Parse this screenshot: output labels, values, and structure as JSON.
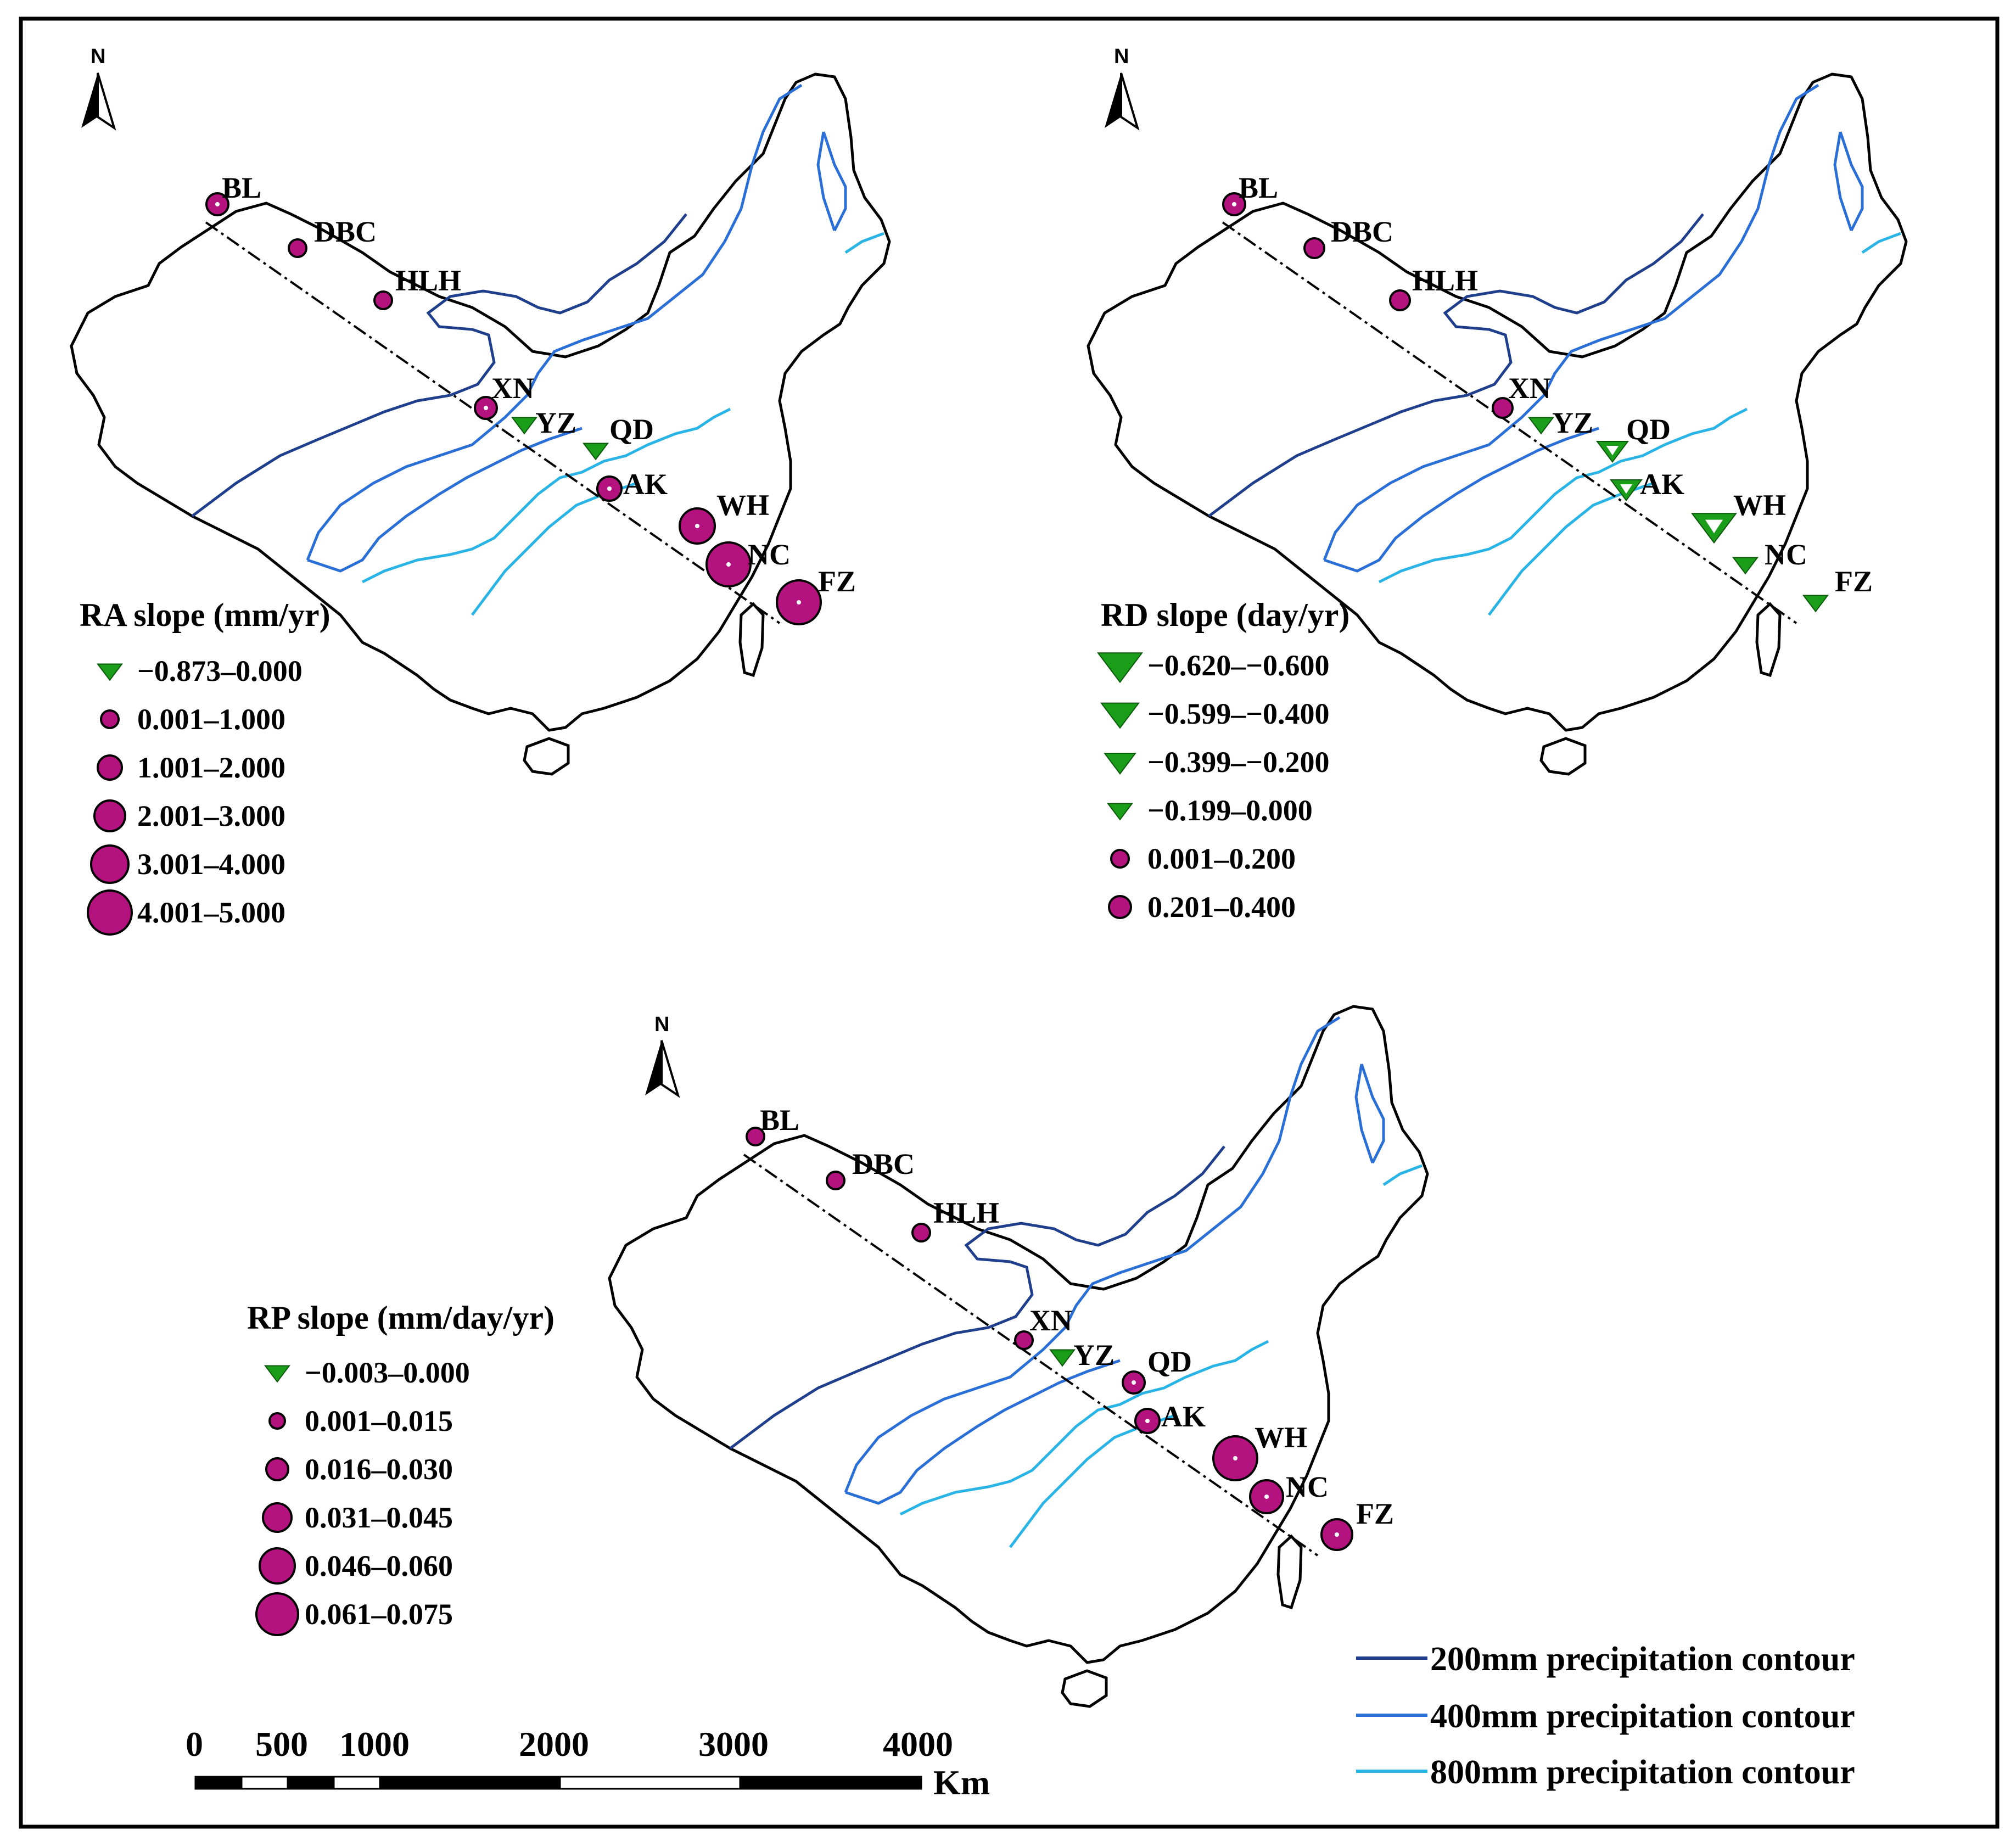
{
  "north_label": "N",
  "maps": [
    {
      "id": "ra",
      "title": "RA slope (mm/yr)",
      "legend": [
        {
          "label": "−0.873–0.000",
          "shape": "tri",
          "s": 22
        },
        {
          "label": "0.001–1.000",
          "shape": "dot",
          "s": 16
        },
        {
          "label": "1.001–2.000",
          "shape": "dot",
          "s": 22
        },
        {
          "label": "2.001–3.000",
          "shape": "dot",
          "s": 28
        },
        {
          "label": "3.001–4.000",
          "shape": "dot",
          "s": 34
        },
        {
          "label": "4.001–5.000",
          "shape": "dot",
          "s": 40
        }
      ],
      "stations": {
        "BL": {
          "shape": "dot",
          "s": 20
        },
        "DBC": {
          "shape": "dot",
          "s": 16
        },
        "HLH": {
          "shape": "dot",
          "s": 16
        },
        "XN": {
          "shape": "dot",
          "s": 20
        },
        "YZ": {
          "shape": "tri",
          "s": 22
        },
        "QD": {
          "shape": "tri",
          "s": 22
        },
        "AK": {
          "shape": "dot",
          "s": 22
        },
        "WH": {
          "shape": "dot",
          "s": 32
        },
        "NC": {
          "shape": "dot",
          "s": 40
        },
        "FZ": {
          "shape": "dot",
          "s": 40
        }
      }
    },
    {
      "id": "rd",
      "title": "RD slope (day/yr)",
      "legend": [
        {
          "label": "−0.620–−0.600",
          "shape": "tri",
          "s": 40
        },
        {
          "label": "−0.599–−0.400",
          "shape": "tri",
          "s": 34
        },
        {
          "label": "−0.399–−0.200",
          "shape": "tri",
          "s": 28
        },
        {
          "label": "−0.199–0.000",
          "shape": "tri",
          "s": 22
        },
        {
          "label": "0.001–0.200",
          "shape": "dot",
          "s": 16
        },
        {
          "label": "0.201–0.400",
          "shape": "dot",
          "s": 20
        }
      ],
      "stations": {
        "BL": {
          "shape": "dot",
          "s": 20
        },
        "DBC": {
          "shape": "dot",
          "s": 18
        },
        "HLH": {
          "shape": "dot",
          "s": 18
        },
        "XN": {
          "shape": "dot",
          "s": 18
        },
        "YZ": {
          "shape": "tri",
          "s": 22
        },
        "QD": {
          "shape": "tri",
          "s": 28
        },
        "AK": {
          "shape": "tri",
          "s": 28
        },
        "WH": {
          "shape": "tri",
          "s": 40
        },
        "NC": {
          "shape": "tri",
          "s": 22
        },
        "FZ": {
          "shape": "tri",
          "s": 22
        }
      }
    },
    {
      "id": "rp",
      "title": "RP slope (mm/day/yr)",
      "legend": [
        {
          "label": "−0.003–0.000",
          "shape": "tri",
          "s": 22
        },
        {
          "label": "0.001–0.015",
          "shape": "dot",
          "s": 14
        },
        {
          "label": "0.016–0.030",
          "shape": "dot",
          "s": 20
        },
        {
          "label": "0.031–0.045",
          "shape": "dot",
          "s": 26
        },
        {
          "label": "0.046–0.060",
          "shape": "dot",
          "s": 32
        },
        {
          "label": "0.061–0.075",
          "shape": "dot",
          "s": 38
        }
      ],
      "stations": {
        "BL": {
          "shape": "dot",
          "s": 16
        },
        "DBC": {
          "shape": "dot",
          "s": 16
        },
        "HLH": {
          "shape": "dot",
          "s": 16
        },
        "XN": {
          "shape": "dot",
          "s": 16
        },
        "YZ": {
          "shape": "tri",
          "s": 22
        },
        "QD": {
          "shape": "dot",
          "s": 20
        },
        "AK": {
          "shape": "dot",
          "s": 22
        },
        "WH": {
          "shape": "dot",
          "s": 40
        },
        "NC": {
          "shape": "dot",
          "s": 30
        },
        "FZ": {
          "shape": "dot",
          "s": 28
        }
      }
    }
  ],
  "station_names": [
    "BL",
    "DBC",
    "HLH",
    "XN",
    "YZ",
    "QD",
    "AK",
    "WH",
    "NC",
    "FZ"
  ],
  "contours": [
    {
      "label": "200mm precipitation contour",
      "color": "#1f3f8c"
    },
    {
      "label": "400mm precipitation contour",
      "color": "#2a6fd6"
    },
    {
      "label": "800mm precipitation contour",
      "color": "#2ab4e6"
    }
  ],
  "colors": {
    "positive": "#b4127e",
    "negative": "#1a9e1a"
  },
  "scale_bar": {
    "ticks": [
      "0",
      "500",
      "1000",
      "2000",
      "3000",
      "4000"
    ],
    "unit": "Km"
  }
}
